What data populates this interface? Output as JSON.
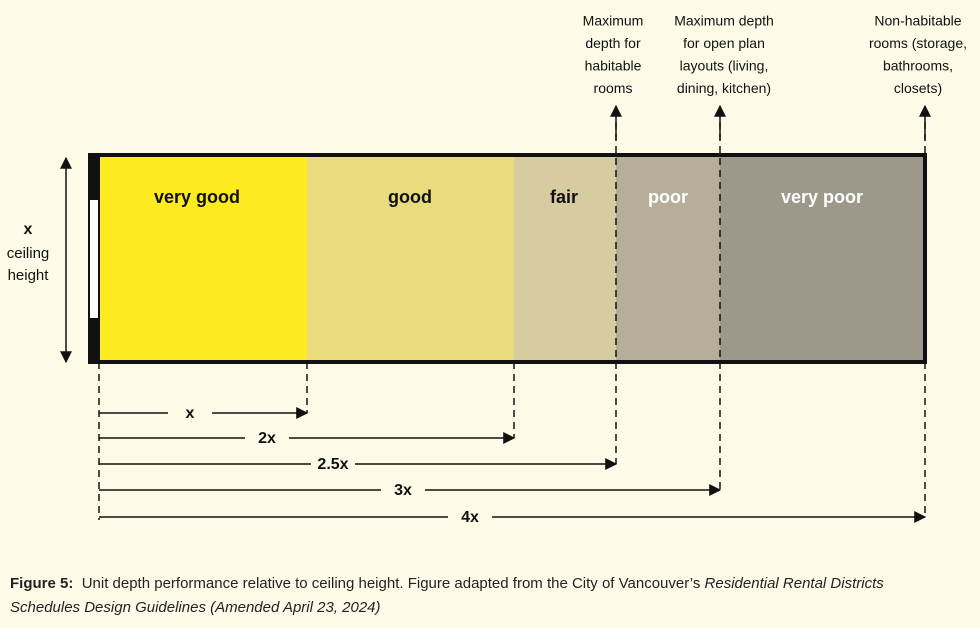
{
  "annotations": [
    {
      "lines": [
        "Maximum",
        "depth for",
        "habitable",
        "rooms"
      ]
    },
    {
      "lines": [
        "Maximum depth",
        "for open plan",
        "layouts (living,",
        "dining, kitchen)"
      ]
    },
    {
      "lines": [
        "Non-habitable",
        "rooms (storage,",
        "bathrooms,",
        "closets)"
      ]
    }
  ],
  "zones": [
    "very good",
    "good",
    "fair",
    "poor",
    "very poor"
  ],
  "side_label": [
    "x",
    "ceiling",
    "height"
  ],
  "dimensions": [
    "x",
    "2x",
    "2.5x",
    "3x",
    "4x"
  ],
  "caption": {
    "label": "Figure 5:",
    "text": "Unit depth performance relative to ceiling height. Figure adapted from the City of Vancouver’s",
    "source_title": "Residential Rental Districts Schedules Design Guidelines",
    "note": "(Amended April 23, 2024)"
  }
}
